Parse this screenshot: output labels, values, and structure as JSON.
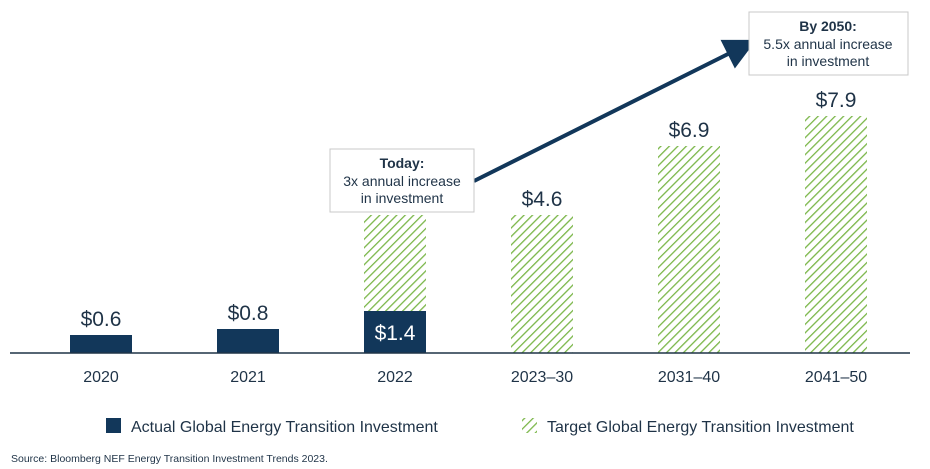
{
  "chart_data": {
    "type": "bar",
    "categories": [
      "2020",
      "2021",
      "2022",
      "2023–30",
      "2031–40",
      "2041–50"
    ],
    "series": [
      {
        "name": "Actual Global Energy Transition Investment",
        "values": [
          0.6,
          0.8,
          1.4,
          null,
          null,
          null
        ],
        "color": "#12375a",
        "fill": "solid"
      },
      {
        "name": "Target Global Energy Transition Investment",
        "values": [
          null,
          null,
          4.6,
          4.6,
          6.9,
          7.9
        ],
        "color": "#7ab648",
        "fill": "hatched"
      }
    ],
    "data_labels": [
      "$0.6",
      "$0.8",
      "$1.4",
      "$4.6",
      "$6.9",
      "$7.9"
    ],
    "ylim": [
      0,
      8
    ],
    "grid": false,
    "legend": "bottom",
    "annotations": [
      {
        "title": "Today:",
        "lines": [
          "3x annual increase",
          "in investment"
        ]
      },
      {
        "title": "By 2050:",
        "lines": [
          "5.5x annual increase",
          "in investment"
        ]
      }
    ],
    "source": "Source: Bloomberg NEF Energy Transition Investment Trends 2023."
  }
}
